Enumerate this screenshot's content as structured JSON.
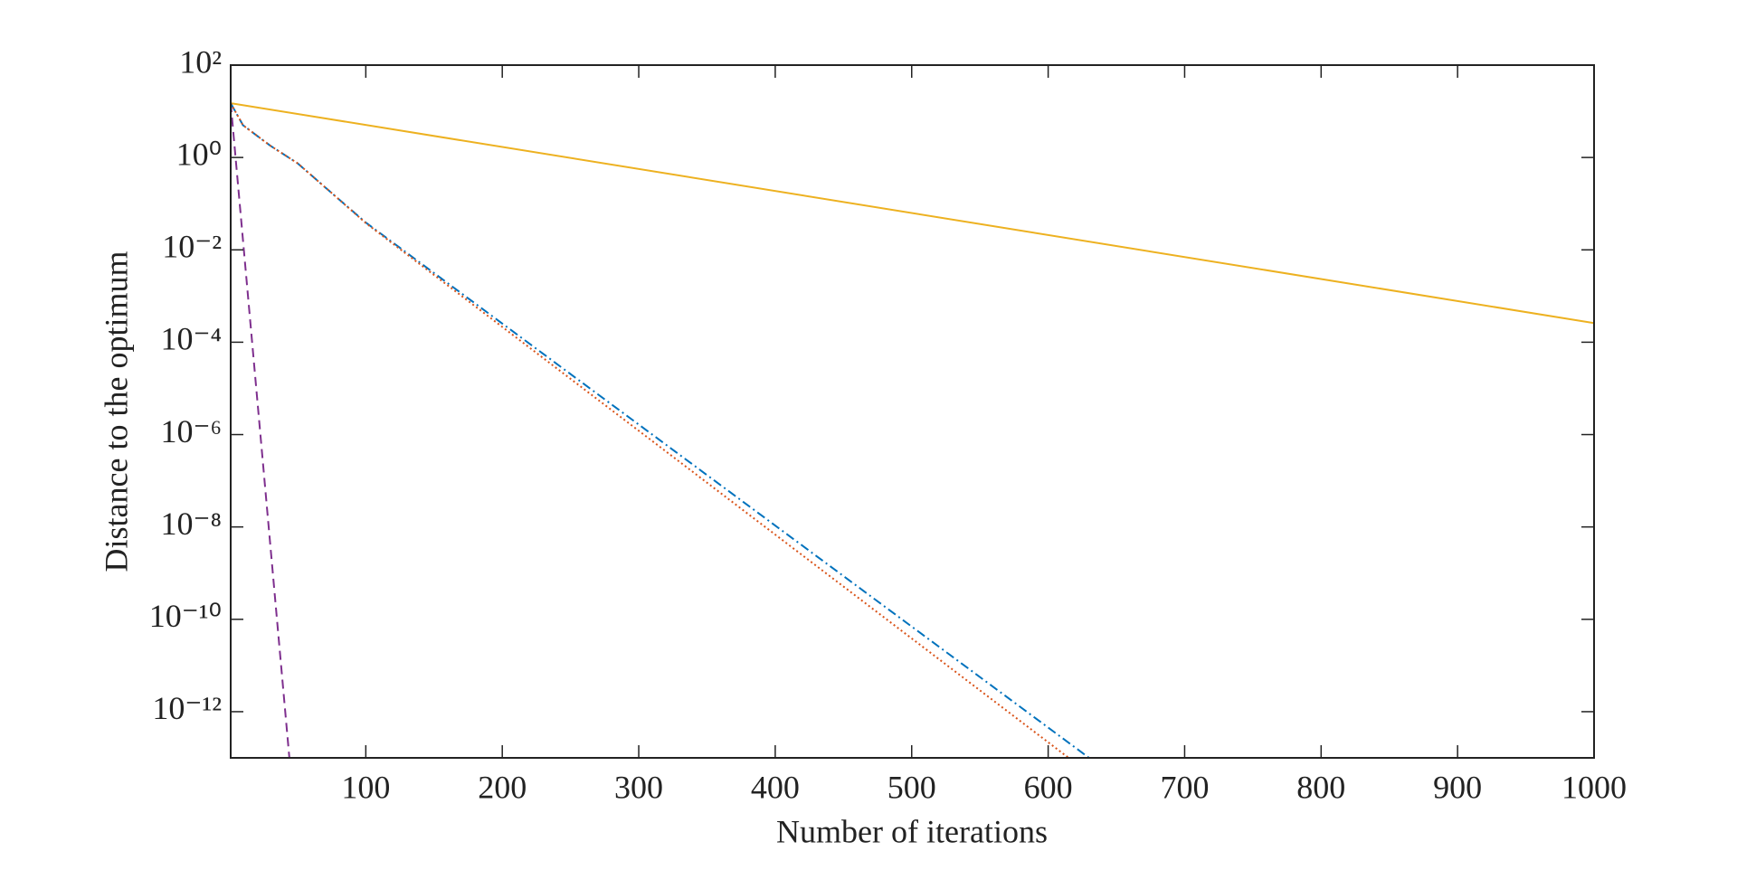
{
  "chart_data": {
    "type": "line",
    "xlabel": "Number of iterations",
    "ylabel": "Distance to the optimum",
    "yscale": "log",
    "xlim": [
      1,
      1000
    ],
    "xticks": [
      100,
      200,
      300,
      400,
      500,
      600,
      700,
      800,
      900,
      1000
    ],
    "ylim": [
      1e-13,
      100
    ],
    "yticks": [
      {
        "value": 100,
        "label": "10²"
      },
      {
        "value": 1,
        "label": "10⁰"
      },
      {
        "value": 0.01,
        "label": "10⁻²"
      },
      {
        "value": 0.0001,
        "label": "10⁻⁴"
      },
      {
        "value": 1e-06,
        "label": "10⁻⁶"
      },
      {
        "value": 1e-08,
        "label": "10⁻⁸"
      },
      {
        "value": 1e-10,
        "label": "10⁻¹⁰"
      },
      {
        "value": 1e-12,
        "label": "10⁻¹²"
      }
    ],
    "series": [
      {
        "color": "#EDB120",
        "dash": "solid",
        "x": [
          1,
          1000
        ],
        "values": [
          15,
          0.00026
        ]
      },
      {
        "color": "#7E2F8E",
        "dash": "dashed",
        "x": [
          1,
          44
        ],
        "values": [
          15,
          1e-13
        ]
      },
      {
        "color": "#0072BD",
        "dash": "dashdot",
        "x": [
          1,
          10,
          20,
          30,
          50,
          75,
          100,
          630
        ],
        "values": [
          15,
          5,
          3,
          1.8,
          0.75,
          0.17,
          0.039,
          1e-13
        ]
      },
      {
        "color": "#D95319",
        "dash": "dotted",
        "x": [
          1,
          10,
          20,
          30,
          50,
          75,
          100,
          615
        ],
        "values": [
          15,
          5,
          3,
          1.8,
          0.75,
          0.17,
          0.038,
          1e-13
        ]
      }
    ]
  }
}
